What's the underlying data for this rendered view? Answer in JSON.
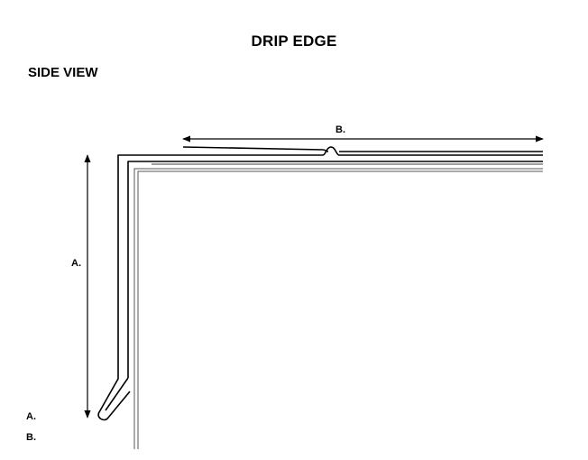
{
  "document": {
    "title": "DRIP EDGE",
    "view_label": "SIDE VIEW"
  },
  "diagram": {
    "dimension_a_label": "A.",
    "dimension_b_label": "B."
  },
  "legend": {
    "items": [
      {
        "label": "A."
      },
      {
        "label": "B."
      }
    ]
  },
  "colors": {
    "line": "#000000",
    "fascia": "#555555",
    "background": "#ffffff"
  }
}
